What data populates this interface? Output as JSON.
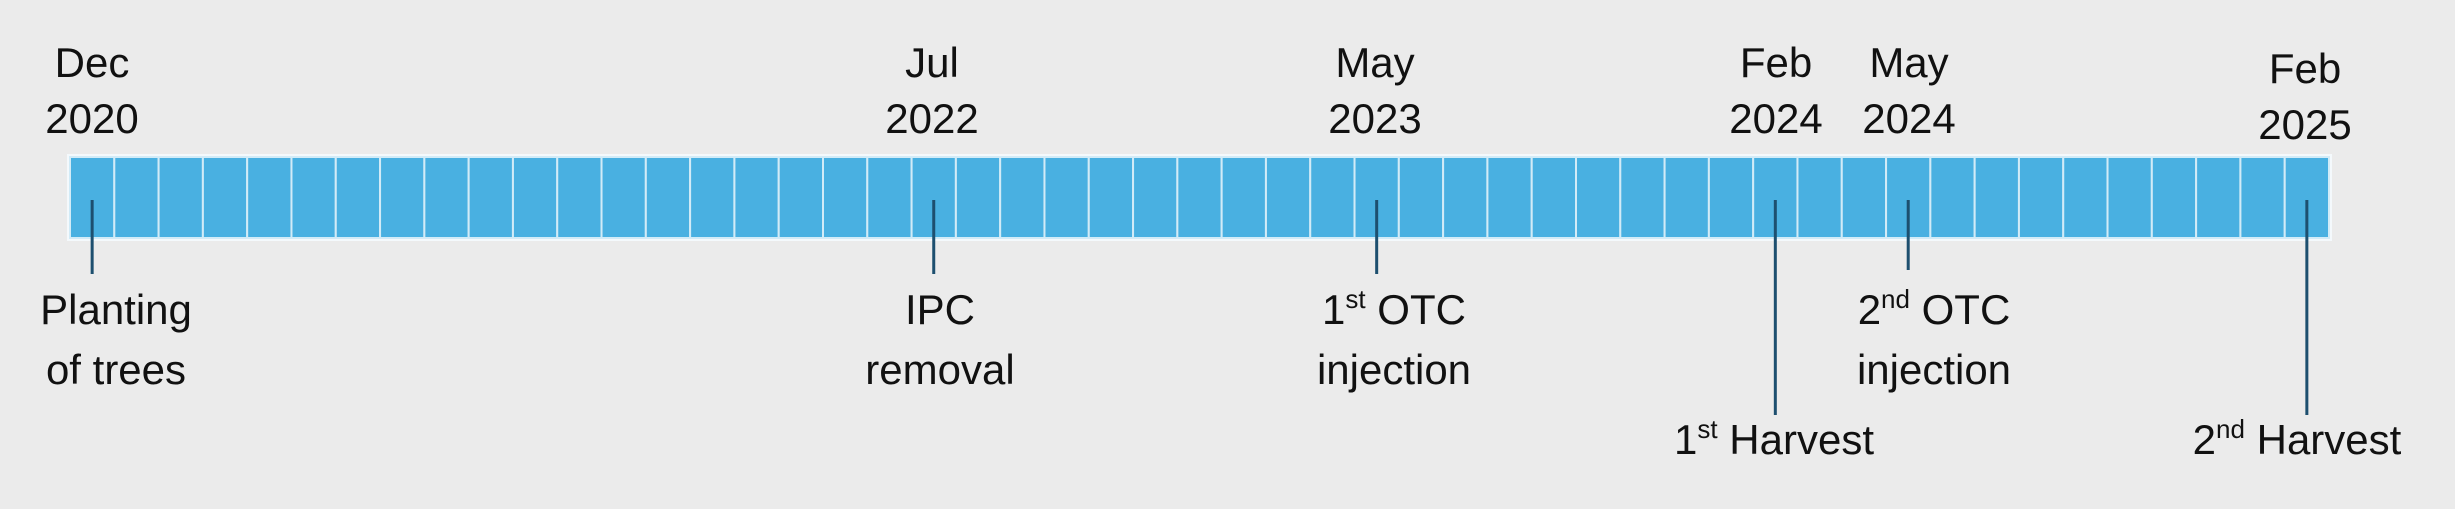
{
  "timeline": {
    "events": [
      {
        "date": [
          "Dec",
          "2020"
        ],
        "label": [
          "Planting",
          "of trees"
        ]
      },
      {
        "date": [
          "Jul",
          "2022"
        ],
        "label": [
          "IPC",
          "removal"
        ]
      },
      {
        "date": [
          "May",
          "2023"
        ],
        "label": [
          {
            "base": "1",
            "sup": "st",
            "rest": " OTC"
          },
          "injection"
        ]
      },
      {
        "date": [
          "Feb",
          "2024"
        ],
        "label": [
          {
            "base": "1",
            "sup": "st",
            "rest": " Harvest"
          }
        ]
      },
      {
        "date": [
          "May",
          "2024"
        ],
        "label": [
          {
            "base": "2",
            "sup": "nd",
            "rest": " OTC"
          },
          "injection"
        ]
      },
      {
        "date": [
          "Feb",
          "2025"
        ],
        "label": [
          {
            "base": "2",
            "sup": "nd",
            "rest": " Harvest"
          }
        ]
      }
    ]
  }
}
